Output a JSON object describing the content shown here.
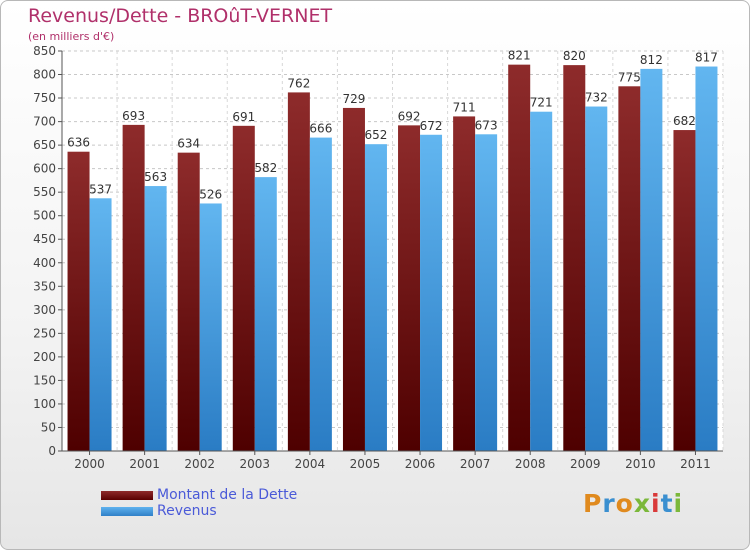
{
  "chart_data": {
    "type": "bar",
    "title": "Revenus/Dette - BROûT-VERNET",
    "subtitle": "(en milliers d'€)",
    "categories": [
      "2000",
      "2001",
      "2002",
      "2003",
      "2004",
      "2005",
      "2006",
      "2007",
      "2008",
      "2009",
      "2010",
      "2011"
    ],
    "series": [
      {
        "name": "Montant de la Dette",
        "color": "#7a1a1a",
        "values": [
          636,
          693,
          634,
          691,
          762,
          729,
          692,
          711,
          821,
          820,
          775,
          682
        ]
      },
      {
        "name": "Revenus",
        "color": "#4aa3e6",
        "values": [
          537,
          563,
          526,
          582,
          666,
          652,
          672,
          673,
          721,
          732,
          812,
          817
        ]
      }
    ],
    "ylim": [
      0,
      850
    ],
    "yticks": [
      0,
      50,
      100,
      150,
      200,
      250,
      300,
      350,
      400,
      450,
      500,
      550,
      600,
      650,
      700,
      750,
      800,
      850
    ],
    "grid": true,
    "legend_position": "bottom-left"
  },
  "logo": {
    "text": "Proxiti"
  }
}
